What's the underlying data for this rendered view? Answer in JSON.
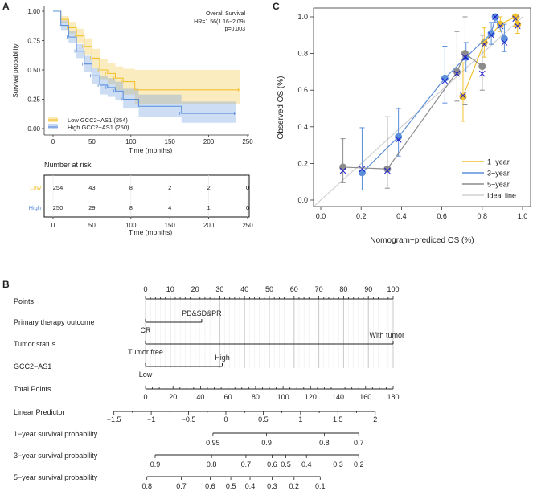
{
  "colors": {
    "low": "#f2c12e",
    "high": "#5b8fd9",
    "five_year": "#8c8c8c",
    "ideal": "#d0d0d0",
    "bias_marker": "#1a1acc"
  },
  "chart_data": [
    {
      "panel": "A",
      "type": "line",
      "subtype": "kaplan-meier",
      "annotation": [
        "Overall Survival",
        "HR=1.56(1.16−2.09)",
        "p=0.003"
      ],
      "xlabel": "Time (months)",
      "ylabel": "Survival probability",
      "xlim": [
        0,
        250
      ],
      "ylim": [
        0,
        1
      ],
      "xticks": [
        "0",
        "50",
        "100",
        "150",
        "200",
        "250"
      ],
      "yticks": [
        "0.00",
        "0.25",
        "0.50",
        "0.75",
        "1.00"
      ],
      "legend": "bottom-left",
      "series": [
        {
          "name": "Low GCC2−AS1 (254)",
          "color_key": "low",
          "x": [
            0,
            10,
            20,
            30,
            40,
            50,
            60,
            70,
            80,
            90,
            105,
            240
          ],
          "y": [
            1,
            0.93,
            0.86,
            0.79,
            0.7,
            0.6,
            0.5,
            0.47,
            0.43,
            0.4,
            0.33,
            0.33
          ],
          "upper": [
            1,
            0.96,
            0.91,
            0.85,
            0.77,
            0.68,
            0.59,
            0.56,
            0.53,
            0.51,
            0.5,
            0.5
          ],
          "lower": [
            1,
            0.9,
            0.81,
            0.73,
            0.63,
            0.52,
            0.42,
            0.38,
            0.33,
            0.29,
            0.21,
            0.21
          ]
        },
        {
          "name": "High GCC2−AS1 (250)",
          "color_key": "high",
          "x": [
            0,
            10,
            20,
            30,
            40,
            50,
            60,
            70,
            80,
            90,
            110,
            165,
            235
          ],
          "y": [
            1,
            0.88,
            0.78,
            0.66,
            0.55,
            0.45,
            0.37,
            0.35,
            0.32,
            0.25,
            0.19,
            0.13,
            0.13
          ],
          "upper": [
            1,
            0.92,
            0.83,
            0.72,
            0.62,
            0.52,
            0.45,
            0.43,
            0.4,
            0.34,
            0.29,
            0.23,
            0.23
          ],
          "lower": [
            1,
            0.84,
            0.73,
            0.6,
            0.48,
            0.38,
            0.29,
            0.27,
            0.24,
            0.17,
            0.1,
            0.05,
            0.05
          ]
        }
      ],
      "risk_table": {
        "title": "Number at risk",
        "xlabel": "Time (months)",
        "times": [
          "0",
          "50",
          "100",
          "150",
          "200",
          "250"
        ],
        "rows": [
          {
            "label": "Low",
            "color_key": "low",
            "values": [
              "254",
              "43",
              "8",
              "2",
              "2",
              "0"
            ]
          },
          {
            "label": "High",
            "color_key": "high",
            "values": [
              "250",
              "29",
              "8",
              "4",
              "1",
              "0"
            ]
          }
        ]
      }
    },
    {
      "panel": "C",
      "type": "scatter",
      "subtype": "calibration",
      "xlabel": "Nomogram−prediced OS (%)",
      "ylabel": "Observed OS (%)",
      "xlim": [
        0,
        1
      ],
      "ylim": [
        0,
        1
      ],
      "xticks": [
        "0.0",
        "0.2",
        "0.4",
        "0.6",
        "0.8",
        "1.0"
      ],
      "yticks": [
        "0.0",
        "0.2",
        "0.4",
        "0.6",
        "0.8",
        "1.0"
      ],
      "legend": "bottom-right",
      "legend_entries": [
        {
          "name": "1−year",
          "color_key": "low"
        },
        {
          "name": "3−year",
          "color_key": "high"
        },
        {
          "name": "5−year",
          "color_key": "five_year"
        },
        {
          "name": "Ideal line",
          "color_key": "ideal"
        }
      ],
      "series": [
        {
          "name": "1−year",
          "color_key": "low",
          "x": [
            0.705,
            0.81,
            0.89,
            0.965,
            0.975
          ],
          "y": [
            0.565,
            0.86,
            0.96,
            1.0,
            0.96
          ],
          "lo": [
            0.43,
            0.78,
            0.92,
            0.95,
            0.91
          ],
          "hi": [
            0.75,
            0.94,
            1.0,
            1.0,
            1.0
          ],
          "corrected": [
            0.57,
            0.85,
            0.95,
            0.99,
            0.95
          ]
        },
        {
          "name": "3−year",
          "color_key": "high",
          "x": [
            0.205,
            0.385,
            0.615,
            0.72,
            0.845,
            0.865,
            0.91
          ],
          "y": [
            0.15,
            0.345,
            0.665,
            0.78,
            0.91,
            1.0,
            0.88
          ],
          "lo": [
            0.055,
            0.24,
            0.53,
            0.7,
            0.85,
            0.97,
            0.81
          ],
          "hi": [
            0.395,
            0.5,
            0.84,
            0.86,
            0.97,
            1.0,
            0.96
          ],
          "corrected": [
            0.17,
            0.33,
            0.65,
            0.78,
            0.9,
            1.0,
            0.86
          ]
        },
        {
          "name": "5−year",
          "color_key": "five_year",
          "x": [
            0.11,
            0.33,
            0.675,
            0.715,
            0.8
          ],
          "y": [
            0.18,
            0.17,
            0.7,
            0.8,
            0.73
          ],
          "lo": [
            0.095,
            0.065,
            0.54,
            0.52,
            0.6
          ],
          "hi": [
            0.335,
            0.455,
            0.92,
            1.0,
            0.9
          ],
          "corrected": [
            0.16,
            0.16,
            0.69,
            0.78,
            0.69
          ]
        }
      ]
    },
    {
      "panel": "B",
      "type": "nomogram",
      "rows": [
        {
          "label": "Points",
          "kind": "axis",
          "range": [
            0,
            100
          ],
          "ticks": [
            "0",
            "10",
            "20",
            "30",
            "40",
            "50",
            "60",
            "70",
            "80",
            "90",
            "100"
          ],
          "labels_above": true
        },
        {
          "label": "Primary therapy outcome",
          "kind": "factor",
          "levels": [
            {
              "name": "CR",
              "points": 0,
              "pos": "below"
            },
            {
              "name": "PD&SD&PR",
              "points": 22.7,
              "pos": "above"
            }
          ]
        },
        {
          "label": "Tumor status",
          "kind": "factor",
          "levels": [
            {
              "name": "Tumor free",
              "points": 0,
              "pos": "below"
            },
            {
              "name": "With tumor",
              "points": 100,
              "pos": "above"
            }
          ]
        },
        {
          "label": "GCC2−AS1",
          "kind": "factor",
          "levels": [
            {
              "name": "Low",
              "points": 0,
              "pos": "below"
            },
            {
              "name": "High",
              "points": 31,
              "pos": "above"
            }
          ]
        },
        {
          "label": "Total Points",
          "kind": "axis",
          "range": [
            0,
            180
          ],
          "ticks": [
            "0",
            "20",
            "40",
            "60",
            "80",
            "100",
            "120",
            "140",
            "160",
            "180"
          ]
        },
        {
          "label": "Linear Predictor",
          "kind": "lp",
          "ticks": [
            "−1.5",
            "−1",
            "−0.5",
            "0",
            "0.5",
            "1",
            "1.5",
            "2"
          ],
          "values": [
            -1.5,
            -1,
            -0.5,
            0,
            0.5,
            1,
            1.5,
            2
          ],
          "total_points_at": [
            -23,
            167
          ]
        },
        {
          "label": "1−year survival probability",
          "kind": "prob",
          "ticks": [
            "0.95",
            "0.9",
            "0.8",
            "0.7"
          ],
          "total_points": [
            49,
            88,
            130,
            155
          ]
        },
        {
          "label": "3−year survival probability",
          "kind": "prob",
          "ticks": [
            "0.9",
            "0.8",
            "0.7",
            "0.6",
            "0.5",
            "0.4",
            "0.3",
            "0.2"
          ],
          "total_points": [
            7,
            48,
            73,
            92,
            102,
            117,
            140,
            155
          ]
        },
        {
          "label": "5−year survival probability",
          "kind": "prob",
          "ticks": [
            "0.8",
            "0.7",
            "0.6",
            "0.5",
            "0.4",
            "0.3",
            "0.2",
            "0.1"
          ],
          "total_points": [
            1,
            26,
            47,
            62,
            76,
            92,
            108,
            127
          ]
        }
      ]
    }
  ],
  "panel_labels": [
    "A",
    "B",
    "C"
  ]
}
